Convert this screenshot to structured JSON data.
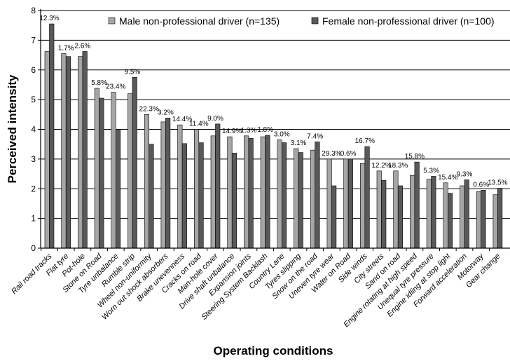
{
  "chart_data": {
    "type": "bar",
    "title": "",
    "xlabel": "Operating conditions",
    "ylabel": "Perceived intensity",
    "ylim": [
      0,
      8
    ],
    "yticks": [
      "0",
      "1",
      "2",
      "3",
      "4",
      "5",
      "6",
      "7",
      "8"
    ],
    "grid": true,
    "legend_position": "top",
    "categories": [
      "Rail road tracks",
      "Flat tyre",
      "Pot-hole",
      "Stone on Road",
      "Tyre unbalance",
      "Rumble strip",
      "Wheel non-uniformity",
      "Worn out shock absorbers",
      "Brake unevenness",
      "Cracks on road",
      "Man-hole cover",
      "Drive shaft unbalance",
      "Expansion joints",
      "Steering System Backlash",
      "Country Lane",
      "Tyres slipping",
      "Snow on the road",
      "Uneven tyre wear",
      "Water on Road",
      "Side winds",
      "City streets",
      "Sand on road",
      "Engine rotating at high speed",
      "Unequal tyre pressure",
      "Engine idling at stop light",
      "Forward acceleration",
      "Motorway",
      "Gear change"
    ],
    "series": [
      {
        "name": "Male non-professional driver (n=135)",
        "color": "#a6a6a6",
        "values": [
          6.62,
          6.55,
          6.45,
          5.38,
          5.25,
          5.2,
          4.5,
          4.25,
          4.15,
          4.0,
          3.78,
          3.75,
          3.78,
          3.75,
          3.65,
          3.35,
          3.3,
          3.0,
          3.0,
          2.85,
          2.6,
          2.6,
          2.45,
          2.32,
          2.2,
          2.1,
          1.9,
          1.8
        ]
      },
      {
        "name": "Female non-professional driver (n=100)",
        "color": "#595959",
        "values": [
          7.55,
          6.45,
          6.62,
          5.05,
          4.0,
          5.75,
          3.5,
          4.38,
          3.52,
          3.55,
          4.18,
          3.2,
          3.7,
          3.8,
          3.55,
          3.22,
          3.58,
          2.1,
          3.0,
          3.42,
          2.28,
          2.1,
          2.9,
          2.42,
          1.85,
          2.3,
          1.95,
          2.02
        ]
      }
    ],
    "annotations": [
      "12.3%",
      "1.7%",
      "2.6%",
      "5.8%",
      "23.4%",
      "9.5%",
      "22.3%",
      "3.2%",
      "14.4%",
      "11.4%",
      "9.0%",
      "14.9%",
      "1.3%",
      "1.8%",
      "3.0%",
      "3.1%",
      "7.4%",
      "29.3%",
      "0.6%",
      "16.7%",
      "12.2%",
      "18.3%",
      "15.8%",
      "5.3%",
      "15.4%",
      "9.3%",
      "0.6%",
      "13.5%"
    ]
  }
}
